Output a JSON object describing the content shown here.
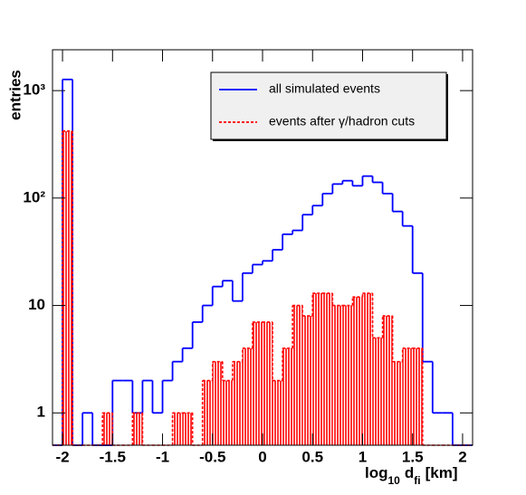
{
  "chart_data": {
    "type": "histogram",
    "ylabel": "entries",
    "xlabel": [
      "log",
      "10",
      "d",
      "fi",
      "[km]"
    ],
    "bins": [
      -2.1,
      -2,
      -1.9,
      -1.8,
      -1.7,
      -1.6,
      -1.5,
      -1.4,
      -1.3,
      -1.2,
      -1.1,
      -1,
      -0.9,
      -0.8,
      -0.7,
      -0.6,
      -0.5,
      -0.4,
      -0.3,
      -0.2,
      -0.1,
      0,
      0.1,
      0.2,
      0.3,
      0.4,
      0.5,
      0.6,
      0.7,
      0.8,
      0.9,
      1,
      1.1,
      1.2,
      1.3,
      1.4,
      1.5,
      1.6,
      1.7,
      1.8,
      1.9,
      2,
      2.1
    ],
    "series": [
      {
        "name": "all simulated events",
        "color": "#0000ff",
        "style": "solid",
        "values": [
          0,
          1270,
          0,
          1,
          0,
          0,
          2,
          2,
          1,
          2,
          1,
          2,
          3,
          4,
          7,
          10,
          15,
          17,
          11,
          20,
          24,
          26,
          33,
          46,
          50,
          70,
          85,
          110,
          135,
          145,
          130,
          160,
          140,
          110,
          75,
          55,
          20,
          3,
          1,
          1,
          0,
          0
        ]
      },
      {
        "name": "events after γ/hadron cuts",
        "color": "#ff0000",
        "style": "dashed-hatched",
        "values": [
          0,
          420,
          0,
          0,
          0,
          1,
          0,
          0,
          1,
          0,
          0,
          0,
          1,
          1,
          0,
          2,
          3,
          2,
          3,
          4,
          7,
          7,
          2,
          4,
          10,
          8,
          13,
          13,
          10,
          10,
          12,
          13,
          5,
          8,
          3,
          4,
          4,
          0,
          0,
          0,
          0,
          0
        ]
      }
    ],
    "xlim": [
      -2.1,
      2.1
    ],
    "xticks": [
      -2,
      -1.5,
      -1,
      -0.5,
      0,
      0.5,
      1,
      1.5,
      2
    ],
    "ylim": [
      0.5,
      2400
    ],
    "yticks": [
      1,
      10,
      {
        "value": 100,
        "label": "10²"
      },
      {
        "value": 1000,
        "label": "10³"
      }
    ],
    "log_y": true,
    "legend": "top-right"
  }
}
